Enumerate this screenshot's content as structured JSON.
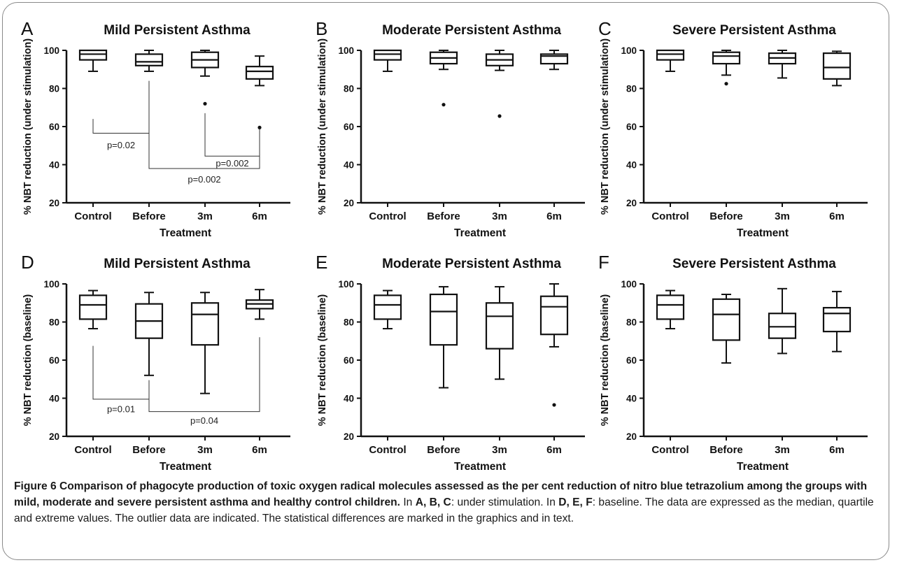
{
  "figure": {
    "caption": {
      "bold_lead": "Figure 6 Comparison of phagocyte production of toxic oxygen radical molecules assessed as the per cent reduction of nitro blue tetrazolium among the groups with mild, moderate and severe persistent asthma and healthy control children.",
      "segments": [
        {
          "text": " In ",
          "bold": false
        },
        {
          "text": "A, B, C",
          "bold": true
        },
        {
          "text": ": under stimulation. In ",
          "bold": false
        },
        {
          "text": "D, E, F",
          "bold": true
        },
        {
          "text": ": baseline. The data are expressed as the median, quartile and extreme values. The outlier data are indicated. The statistical differences are marked in the graphics and in text.",
          "bold": false
        }
      ]
    }
  },
  "chart_data": [
    {
      "panel": "A",
      "type": "box",
      "title": "Mild Persistent Asthma",
      "xlabel": "Treatment",
      "ylabel": "% NBT reduction (under stimulation)",
      "categories": [
        "Control",
        "Before",
        "3m",
        "6m"
      ],
      "ylim": [
        20,
        100
      ],
      "yticks": [
        20,
        40,
        60,
        80,
        100
      ],
      "boxes": [
        {
          "min": 89,
          "q1": 95,
          "median": 98,
          "q3": 100,
          "max": 100,
          "outliers": []
        },
        {
          "min": 89,
          "q1": 92,
          "median": 94,
          "q3": 98,
          "max": 100,
          "outliers": []
        },
        {
          "min": 86.5,
          "q1": 91,
          "median": 95,
          "q3": 99,
          "max": 100,
          "outliers": [
            72
          ]
        },
        {
          "min": 81.5,
          "q1": 85,
          "median": 89,
          "q3": 91.5,
          "max": 97,
          "outliers": [
            59.5
          ]
        }
      ],
      "annotations": [
        {
          "text": "p=0.02",
          "from": 0,
          "to": 1,
          "from_y": 64,
          "to_y": 64,
          "base_y": 56.5,
          "label_y": 50.5
        },
        {
          "text": "p=0.002",
          "from": 2,
          "to": 3,
          "from_y": 67,
          "to_y": 57,
          "base_y": 44.5,
          "label_y": 41
        },
        {
          "text": "p=0.002",
          "from": 1,
          "to": 3,
          "from_y": 84,
          "to_y": 59,
          "base_y": 38,
          "label_y": 32.5
        }
      ]
    },
    {
      "panel": "B",
      "type": "box",
      "title": "Moderate Persistent Asthma",
      "xlabel": "Treatment",
      "ylabel": "% NBT reduction (under stimulation)",
      "categories": [
        "Control",
        "Before",
        "3m",
        "6m"
      ],
      "ylim": [
        20,
        100
      ],
      "yticks": [
        20,
        40,
        60,
        80,
        100
      ],
      "boxes": [
        {
          "min": 89,
          "q1": 95,
          "median": 98,
          "q3": 100,
          "max": 100,
          "outliers": []
        },
        {
          "min": 90,
          "q1": 93,
          "median": 96,
          "q3": 99,
          "max": 100,
          "outliers": [
            71.5
          ]
        },
        {
          "min": 89.5,
          "q1": 92,
          "median": 95,
          "q3": 98,
          "max": 100,
          "outliers": [
            65.5
          ]
        },
        {
          "min": 90,
          "q1": 93,
          "median": 97,
          "q3": 98,
          "max": 100,
          "outliers": []
        }
      ],
      "annotations": []
    },
    {
      "panel": "C",
      "type": "box",
      "title": "Severe Persistent Asthma",
      "xlabel": "Treatment",
      "ylabel": "% NBT reduction (under stimulation)",
      "categories": [
        "Control",
        "Before",
        "3m",
        "6m"
      ],
      "ylim": [
        20,
        100
      ],
      "yticks": [
        20,
        40,
        60,
        80,
        100
      ],
      "boxes": [
        {
          "min": 89,
          "q1": 95,
          "median": 98,
          "q3": 100,
          "max": 100,
          "outliers": []
        },
        {
          "min": 87,
          "q1": 93,
          "median": 97,
          "q3": 99,
          "max": 100,
          "outliers": [
            82.5
          ]
        },
        {
          "min": 85.5,
          "q1": 93,
          "median": 96,
          "q3": 98.5,
          "max": 100,
          "outliers": []
        },
        {
          "min": 81.5,
          "q1": 85,
          "median": 91,
          "q3": 98.5,
          "max": 99.5,
          "outliers": []
        }
      ],
      "annotations": []
    },
    {
      "panel": "D",
      "type": "box",
      "title": "Mild Persistent Asthma",
      "xlabel": "Treatment",
      "ylabel": "% NBT reduction (baseline)",
      "categories": [
        "Control",
        "Before",
        "3m",
        "6m"
      ],
      "ylim": [
        20,
        100
      ],
      "yticks": [
        20,
        40,
        60,
        80,
        100
      ],
      "boxes": [
        {
          "min": 76.5,
          "q1": 81.5,
          "median": 89,
          "q3": 94,
          "max": 96.5,
          "outliers": []
        },
        {
          "min": 52,
          "q1": 71.5,
          "median": 80.5,
          "q3": 89.5,
          "max": 95.5,
          "outliers": []
        },
        {
          "min": 42.5,
          "q1": 68,
          "median": 84,
          "q3": 90,
          "max": 95.5,
          "outliers": []
        },
        {
          "min": 81.5,
          "q1": 87,
          "median": 89.5,
          "q3": 91.5,
          "max": 97,
          "outliers": []
        }
      ],
      "annotations": [
        {
          "text": "p=0.01",
          "from": 0,
          "to": 1,
          "from_y": 67.5,
          "to_y": 49.5,
          "base_y": 39.5,
          "label_y": 34.5
        },
        {
          "text": "p=0.04",
          "from": 1,
          "to": 3,
          "from_y": 47.5,
          "to_y": 72,
          "base_y": 33,
          "label_y": 28.5
        }
      ]
    },
    {
      "panel": "E",
      "type": "box",
      "title": "Moderate Persistent Asthma",
      "xlabel": "Treatment",
      "ylabel": "% NBT reduction (baseline)",
      "categories": [
        "Control",
        "Before",
        "3m",
        "6m"
      ],
      "ylim": [
        20,
        100
      ],
      "yticks": [
        20,
        40,
        60,
        80,
        100
      ],
      "boxes": [
        {
          "min": 76.5,
          "q1": 81.5,
          "median": 89,
          "q3": 94,
          "max": 96.5,
          "outliers": []
        },
        {
          "min": 45.5,
          "q1": 68,
          "median": 85.5,
          "q3": 94.5,
          "max": 98.5,
          "outliers": []
        },
        {
          "min": 50,
          "q1": 66,
          "median": 83,
          "q3": 90,
          "max": 98.5,
          "outliers": []
        },
        {
          "min": 67,
          "q1": 73.5,
          "median": 88,
          "q3": 93.5,
          "max": 100,
          "outliers": [
            36.5
          ]
        }
      ],
      "annotations": []
    },
    {
      "panel": "F",
      "type": "box",
      "title": "Severe Persistent Asthma",
      "xlabel": "Treatment",
      "ylabel": "% NBT reduction (baseline)",
      "categories": [
        "Control",
        "Before",
        "3m",
        "6m"
      ],
      "ylim": [
        20,
        100
      ],
      "yticks": [
        20,
        40,
        60,
        80,
        100
      ],
      "boxes": [
        {
          "min": 76.5,
          "q1": 81.5,
          "median": 89,
          "q3": 94,
          "max": 96.5,
          "outliers": []
        },
        {
          "min": 58.5,
          "q1": 70.5,
          "median": 84,
          "q3": 92,
          "max": 94.5,
          "outliers": []
        },
        {
          "min": 63.5,
          "q1": 71.5,
          "median": 77.5,
          "q3": 84.5,
          "max": 97.5,
          "outliers": []
        },
        {
          "min": 64.5,
          "q1": 75,
          "median": 84.5,
          "q3": 87.5,
          "max": 96,
          "outliers": []
        }
      ],
      "annotations": []
    }
  ]
}
